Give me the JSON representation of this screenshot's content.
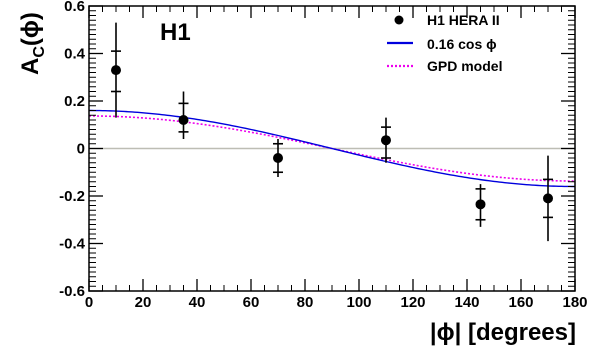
{
  "chart_data": {
    "type": "scatter",
    "experiment_label": "H1",
    "xlabel": "|ϕ| [degrees]",
    "ylabel_main": "A",
    "ylabel_sub": "C",
    "ylabel_arg": "(ϕ)",
    "xlim": [
      0,
      180
    ],
    "ylim": [
      -0.6,
      0.6
    ],
    "x_ticks": [
      0,
      20,
      40,
      60,
      80,
      100,
      120,
      140,
      160,
      180
    ],
    "x_tick_labels": [
      "0",
      "20",
      "40",
      "60",
      "80",
      "100",
      "120",
      "140",
      "160",
      "180"
    ],
    "y_ticks": [
      -0.6,
      -0.4,
      -0.2,
      0,
      0.2,
      0.4,
      0.6
    ],
    "y_tick_labels": [
      "-0.6",
      "-0.4",
      "-0.2",
      "0",
      "0.2",
      "0.4",
      "0.6"
    ],
    "grid": false,
    "legend_position": "top-right",
    "legend": [
      {
        "label": "H1 HERA II",
        "style": "marker"
      },
      {
        "label": "0.16 cos ϕ",
        "style": "solid"
      },
      {
        "label": "GPD model",
        "style": "dotted"
      }
    ],
    "colors": {
      "data": "#000000",
      "fit": "#0000dd",
      "model": "#ee00ee",
      "zero_line": "#bdbdb4"
    },
    "series": [
      {
        "name": "H1 HERA II",
        "points": [
          {
            "x": 10,
            "y": 0.33,
            "stat_lo": 0.24,
            "stat_hi": 0.41,
            "tot_lo": 0.13,
            "tot_hi": 0.53
          },
          {
            "x": 35,
            "y": 0.12,
            "stat_lo": 0.07,
            "stat_hi": 0.19,
            "tot_lo": 0.04,
            "tot_hi": 0.24
          },
          {
            "x": 70,
            "y": -0.04,
            "stat_lo": -0.1,
            "stat_hi": 0.02,
            "tot_lo": -0.12,
            "tot_hi": 0.04
          },
          {
            "x": 110,
            "y": 0.035,
            "stat_lo": -0.04,
            "stat_hi": 0.09,
            "tot_lo": -0.06,
            "tot_hi": 0.13
          },
          {
            "x": 145,
            "y": -0.235,
            "stat_lo": -0.3,
            "stat_hi": -0.17,
            "tot_lo": -0.33,
            "tot_hi": -0.15
          },
          {
            "x": 170,
            "y": -0.21,
            "stat_lo": -0.29,
            "stat_hi": -0.13,
            "tot_lo": -0.39,
            "tot_hi": -0.03
          }
        ]
      },
      {
        "name": "0.16 cos ϕ",
        "function": "cos",
        "amplitude": 0.16
      },
      {
        "name": "GPD model",
        "function": "cos",
        "amplitude": 0.137
      }
    ]
  }
}
